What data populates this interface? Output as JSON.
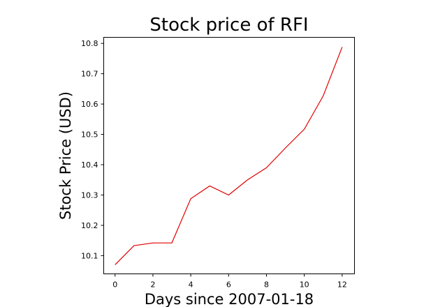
{
  "chart_data": {
    "type": "line",
    "title": "Stock price of RFI",
    "xlabel": "Days since 2007-01-18",
    "ylabel": "Stock Price (USD)",
    "x": [
      0,
      1,
      2,
      3,
      4,
      5,
      6,
      7,
      8,
      9,
      10,
      11,
      12
    ],
    "series": [
      {
        "values": [
          10.07,
          10.133,
          10.142,
          10.142,
          10.288,
          10.33,
          10.3,
          10.35,
          10.39,
          10.455,
          10.517,
          10.627,
          10.788
        ],
        "color": "#e00000"
      }
    ],
    "xlim": [
      -0.6,
      12.65
    ],
    "ylim": [
      10.04,
      10.82
    ],
    "xticks": [
      0,
      2,
      4,
      6,
      8,
      10,
      12
    ],
    "xtick_labels": [
      "0",
      "2",
      "4",
      "6",
      "8",
      "10",
      "12"
    ],
    "yticks": [
      10.1,
      10.2,
      10.3,
      10.4,
      10.5,
      10.6,
      10.7,
      10.8
    ],
    "ytick_labels": [
      "10.1",
      "10.2",
      "10.3",
      "10.4",
      "10.5",
      "10.6",
      "10.7",
      "10.8"
    ],
    "grid": false,
    "legend": false
  }
}
